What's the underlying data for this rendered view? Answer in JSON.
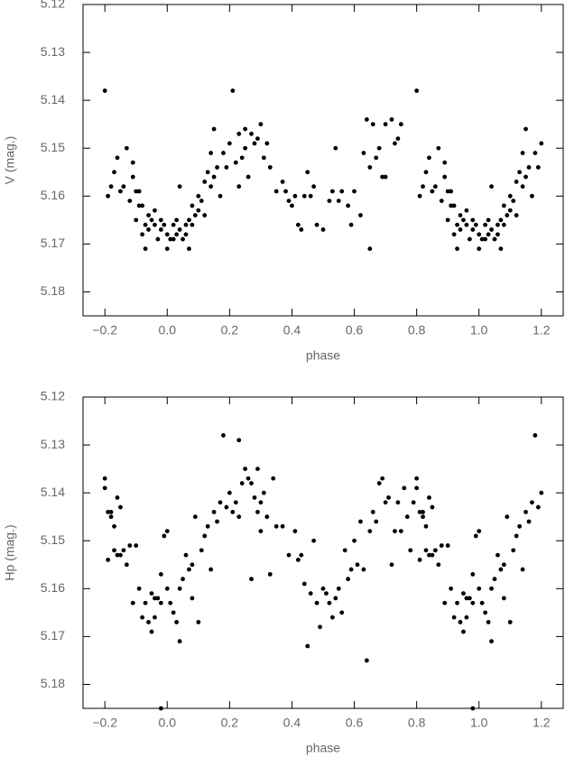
{
  "chart_data": [
    {
      "type": "scatter",
      "xlabel": "phase",
      "ylabel": "V (mag.)",
      "color": "#000000",
      "xlim": [
        -0.27,
        1.27
      ],
      "ylim": [
        5.185,
        5.12
      ],
      "xticks": [
        {
          "value": -0.2,
          "label": "−0.2"
        },
        {
          "value": 0,
          "label": "0.0"
        },
        0.2,
        0.4,
        0.6,
        0.8,
        {
          "value": 1,
          "label": "1.0"
        },
        1.2
      ],
      "yticks": [
        5.12,
        5.13,
        5.14,
        5.15,
        5.16,
        5.17,
        5.18
      ],
      "x": [
        -0.2,
        -0.19,
        -0.18,
        -0.17,
        -0.16,
        -0.15,
        -0.14,
        -0.13,
        -0.12,
        -0.11,
        -0.11,
        -0.1,
        -0.1,
        -0.09,
        -0.09,
        -0.08,
        -0.08,
        -0.07,
        -0.07,
        -0.06,
        -0.06,
        -0.05,
        -0.04,
        -0.04,
        -0.03,
        -0.02,
        -0.02,
        -0.01,
        0,
        0,
        0.01,
        0.02,
        0.02,
        0.03,
        0.03,
        0.04,
        0.04,
        0.05,
        0.06,
        0.06,
        0.07,
        0.07,
        0.08,
        0.08,
        0.09,
        0.1,
        0.1,
        0.11,
        0.12,
        0.12,
        0.13,
        0.14,
        0.14,
        0.15,
        0.15,
        0.16,
        0.17,
        0.18,
        0.19,
        0.2,
        0.21,
        0.22,
        0.23,
        0.23,
        0.24,
        0.25,
        0.25,
        0.26,
        0.27,
        0.28,
        0.29,
        0.3,
        0.31,
        0.32,
        0.33,
        0.35,
        0.37,
        0.38,
        0.39,
        0.4,
        0.41,
        0.42,
        0.43,
        0.44,
        0.45,
        0.46,
        0.47,
        0.48,
        0.5,
        0.52,
        0.53,
        0.54,
        0.55,
        0.56,
        0.58,
        0.59,
        0.6,
        0.62,
        0.63,
        0.64,
        0.65,
        0.65,
        0.66,
        0.67,
        0.68,
        0.69,
        0.7,
        0.7,
        0.72,
        0.73,
        0.74,
        0.75,
        0.8,
        0.81,
        0.82,
        0.83,
        0.84,
        0.85,
        0.86,
        0.87,
        0.88,
        0.89,
        0.89,
        0.9,
        0.9,
        0.91,
        0.91,
        0.92,
        0.92,
        0.93,
        0.93,
        0.94,
        0.94,
        0.95,
        0.96,
        0.96,
        0.97,
        0.98,
        0.98,
        0.99,
        1,
        1,
        1.01,
        1.02,
        1.02,
        1.03,
        1.03,
        1.04,
        1.04,
        1.05,
        1.06,
        1.06,
        1.07,
        1.07,
        1.08,
        1.08,
        1.09,
        1.1,
        1.1,
        1.11,
        1.12,
        1.12,
        1.13,
        1.14,
        1.14,
        1.15,
        1.15,
        1.16,
        1.17,
        1.18,
        1.19,
        1.2
      ],
      "values": [
        5.138,
        5.16,
        5.158,
        5.155,
        5.152,
        5.159,
        5.158,
        5.15,
        5.161,
        5.153,
        5.156,
        5.159,
        5.165,
        5.159,
        5.162,
        5.162,
        5.168,
        5.171,
        5.166,
        5.164,
        5.167,
        5.165,
        5.166,
        5.163,
        5.169,
        5.165,
        5.167,
        5.166,
        5.171,
        5.168,
        5.169,
        5.166,
        5.169,
        5.165,
        5.168,
        5.158,
        5.167,
        5.169,
        5.166,
        5.168,
        5.171,
        5.165,
        5.166,
        5.162,
        5.164,
        5.16,
        5.163,
        5.161,
        5.157,
        5.164,
        5.155,
        5.158,
        5.151,
        5.146,
        5.156,
        5.154,
        5.16,
        5.151,
        5.154,
        5.149,
        5.138,
        5.153,
        5.158,
        5.147,
        5.152,
        5.146,
        5.15,
        5.156,
        5.147,
        5.149,
        5.148,
        5.145,
        5.152,
        5.149,
        5.154,
        5.159,
        5.157,
        5.159,
        5.161,
        5.162,
        5.16,
        5.166,
        5.167,
        5.16,
        5.155,
        5.16,
        5.158,
        5.166,
        5.167,
        5.161,
        5.159,
        5.15,
        5.161,
        5.159,
        5.162,
        5.166,
        5.159,
        5.164,
        5.151,
        5.144,
        5.171,
        5.154,
        5.145,
        5.152,
        5.15,
        5.156,
        5.156,
        5.145,
        5.144,
        5.149,
        5.148,
        5.145,
        5.138,
        5.16,
        5.158,
        5.155,
        5.152,
        5.159,
        5.158,
        5.15,
        5.161,
        5.153,
        5.156,
        5.159,
        5.165,
        5.159,
        5.162,
        5.162,
        5.168,
        5.171,
        5.166,
        5.164,
        5.167,
        5.165,
        5.166,
        5.163,
        5.169,
        5.165,
        5.167,
        5.166,
        5.171,
        5.168,
        5.169,
        5.166,
        5.169,
        5.165,
        5.168,
        5.158,
        5.167,
        5.169,
        5.166,
        5.168,
        5.171,
        5.165,
        5.166,
        5.162,
        5.164,
        5.16,
        5.163,
        5.161,
        5.157,
        5.164,
        5.155,
        5.158,
        5.151,
        5.146,
        5.156,
        5.154,
        5.16,
        5.151,
        5.154,
        5.149
      ]
    },
    {
      "type": "scatter",
      "xlabel": "phase",
      "ylabel": "Hp (mag.)",
      "color": "#000000",
      "xlim": [
        -0.27,
        1.27
      ],
      "ylim": [
        5.185,
        5.12
      ],
      "xticks": [
        {
          "value": -0.2,
          "label": "−0.2"
        },
        {
          "value": 0,
          "label": "0.0"
        },
        0.2,
        0.4,
        0.6,
        0.8,
        {
          "value": 1,
          "label": "1.0"
        },
        1.2
      ],
      "yticks": [
        5.12,
        5.13,
        5.14,
        5.15,
        5.16,
        5.17,
        5.18
      ],
      "x": [
        -0.2,
        -0.2,
        -0.19,
        -0.19,
        -0.18,
        -0.18,
        -0.17,
        -0.17,
        -0.16,
        -0.16,
        -0.15,
        -0.15,
        -0.14,
        -0.13,
        -0.12,
        -0.11,
        -0.1,
        -0.09,
        -0.08,
        -0.07,
        -0.06,
        -0.05,
        -0.05,
        -0.04,
        -0.04,
        -0.03,
        -0.02,
        -0.02,
        -0.02,
        -0.01,
        0,
        0,
        0.01,
        0.02,
        0.03,
        0.04,
        0.04,
        0.05,
        0.06,
        0.07,
        0.08,
        0.08,
        0.09,
        0.1,
        0.11,
        0.12,
        0.13,
        0.14,
        0.15,
        0.16,
        0.17,
        0.18,
        0.19,
        0.2,
        0.21,
        0.22,
        0.23,
        0.23,
        0.24,
        0.25,
        0.26,
        0.27,
        0.27,
        0.28,
        0.29,
        0.29,
        0.3,
        0.3,
        0.31,
        0.32,
        0.33,
        0.34,
        0.35,
        0.37,
        0.39,
        0.41,
        0.42,
        0.43,
        0.44,
        0.45,
        0.46,
        0.47,
        0.48,
        0.49,
        0.5,
        0.51,
        0.52,
        0.53,
        0.54,
        0.55,
        0.56,
        0.57,
        0.58,
        0.59,
        0.6,
        0.61,
        0.62,
        0.63,
        0.64,
        0.65,
        0.66,
        0.67,
        0.68,
        0.69,
        0.7,
        0.71,
        0.72,
        0.73,
        0.74,
        0.75,
        0.76,
        0.77,
        0.78,
        0.79,
        0.8,
        0.8,
        0.81,
        0.81,
        0.82,
        0.82,
        0.83,
        0.83,
        0.84,
        0.84,
        0.85,
        0.85,
        0.86,
        0.87,
        0.88,
        0.89,
        0.9,
        0.91,
        0.92,
        0.93,
        0.94,
        0.95,
        0.95,
        0.96,
        0.96,
        0.97,
        0.98,
        0.98,
        0.98,
        0.99,
        1,
        1,
        1.01,
        1.02,
        1.03,
        1.04,
        1.04,
        1.05,
        1.06,
        1.07,
        1.08,
        1.08,
        1.09,
        1.1,
        1.11,
        1.12,
        1.13,
        1.14,
        1.15,
        1.16,
        1.17,
        1.18,
        1.19,
        1.2
      ],
      "values": [
        5.139,
        5.137,
        5.144,
        5.154,
        5.145,
        5.144,
        5.147,
        5.152,
        5.141,
        5.153,
        5.153,
        5.143,
        5.152,
        5.155,
        5.151,
        5.163,
        5.151,
        5.16,
        5.166,
        5.163,
        5.167,
        5.169,
        5.161,
        5.166,
        5.162,
        5.162,
        5.163,
        5.157,
        5.185,
        5.149,
        5.148,
        5.16,
        5.163,
        5.165,
        5.167,
        5.16,
        5.171,
        5.158,
        5.153,
        5.156,
        5.162,
        5.155,
        5.145,
        5.167,
        5.152,
        5.149,
        5.147,
        5.156,
        5.144,
        5.146,
        5.142,
        5.128,
        5.143,
        5.14,
        5.144,
        5.142,
        5.129,
        5.145,
        5.138,
        5.135,
        5.137,
        5.138,
        5.158,
        5.141,
        5.144,
        5.135,
        5.142,
        5.148,
        5.14,
        5.145,
        5.157,
        5.137,
        5.147,
        5.147,
        5.153,
        5.148,
        5.154,
        5.153,
        5.159,
        5.172,
        5.161,
        5.15,
        5.163,
        5.168,
        5.16,
        5.161,
        5.163,
        5.166,
        5.162,
        5.16,
        5.165,
        5.152,
        5.158,
        5.156,
        5.15,
        5.155,
        5.146,
        5.156,
        5.175,
        5.148,
        5.144,
        5.146,
        5.138,
        5.137,
        5.142,
        5.141,
        5.155,
        5.148,
        5.142,
        5.148,
        5.139,
        5.145,
        5.152,
        5.142,
        5.139,
        5.137,
        5.144,
        5.154,
        5.145,
        5.144,
        5.147,
        5.152,
        5.141,
        5.153,
        5.153,
        5.143,
        5.152,
        5.155,
        5.151,
        5.163,
        5.151,
        5.16,
        5.166,
        5.163,
        5.167,
        5.169,
        5.161,
        5.166,
        5.162,
        5.162,
        5.163,
        5.157,
        5.185,
        5.149,
        5.148,
        5.16,
        5.163,
        5.165,
        5.167,
        5.16,
        5.171,
        5.158,
        5.153,
        5.156,
        5.162,
        5.155,
        5.145,
        5.167,
        5.152,
        5.149,
        5.147,
        5.156,
        5.144,
        5.146,
        5.142,
        5.128,
        5.143,
        5.14
      ]
    }
  ]
}
